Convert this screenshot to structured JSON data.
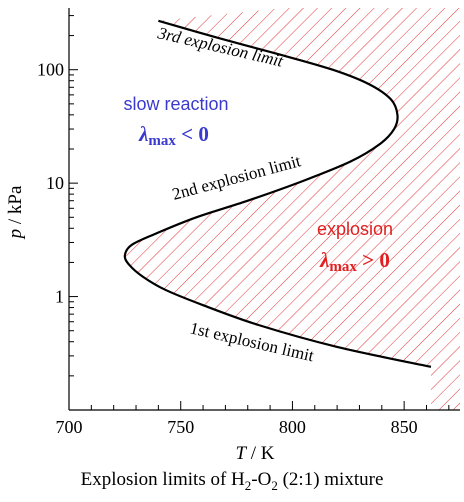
{
  "caption": {
    "prefix": "Explosion limits of H",
    "sub1": "2",
    "mid": "-O",
    "sub2": "2",
    "suffix": " (2:1) mixture"
  },
  "chart_data": {
    "type": "line",
    "x_axis": {
      "label_var": "T",
      "label_unit": " / K",
      "range": [
        700,
        875
      ],
      "ticks": [
        700,
        750,
        800,
        850
      ],
      "tick_labels": [
        "700",
        "750",
        "800",
        "850"
      ]
    },
    "y_axis": {
      "label_var": "p",
      "label_unit": " / kPa",
      "scale": "log",
      "range": [
        0.1,
        350
      ],
      "ticks": [
        1,
        10,
        100
      ],
      "tick_labels": [
        "1",
        "10",
        "100"
      ]
    },
    "grid": false,
    "boundary_curve": [
      {
        "T": 862,
        "p": 0.24
      },
      {
        "T": 820,
        "p": 0.36
      },
      {
        "T": 785,
        "p": 0.56
      },
      {
        "T": 760,
        "p": 0.84
      },
      {
        "T": 743,
        "p": 1.15
      },
      {
        "T": 733,
        "p": 1.5
      },
      {
        "T": 727,
        "p": 1.9
      },
      {
        "T": 725,
        "p": 2.3
      },
      {
        "T": 728,
        "p": 2.85
      },
      {
        "T": 739,
        "p": 3.6
      },
      {
        "T": 757,
        "p": 5.0
      },
      {
        "T": 780,
        "p": 7.0
      },
      {
        "T": 805,
        "p": 10.5
      },
      {
        "T": 826,
        "p": 15.5
      },
      {
        "T": 839,
        "p": 22
      },
      {
        "T": 845.5,
        "p": 30
      },
      {
        "T": 847,
        "p": 40
      },
      {
        "T": 844,
        "p": 55
      },
      {
        "T": 834,
        "p": 75
      },
      {
        "T": 818,
        "p": 100
      },
      {
        "T": 795,
        "p": 135
      },
      {
        "T": 767,
        "p": 190
      },
      {
        "T": 740,
        "p": 270
      }
    ],
    "labels": {
      "third_limit": "3rd explosion limit",
      "second_limit": "2nd explosion limit",
      "first_limit": "1st explosion limit",
      "slow_region": "slow reaction",
      "explosion_region": "explosion",
      "lambda_symbol": "λ",
      "lambda_subscript": "max",
      "slow_condition": " < 0",
      "explosion_condition": " > 0"
    },
    "colors": {
      "curve": "#000000",
      "hatch": "#e02020",
      "slow_text": "#3a3acf",
      "explosion_text": "#e02020"
    }
  }
}
